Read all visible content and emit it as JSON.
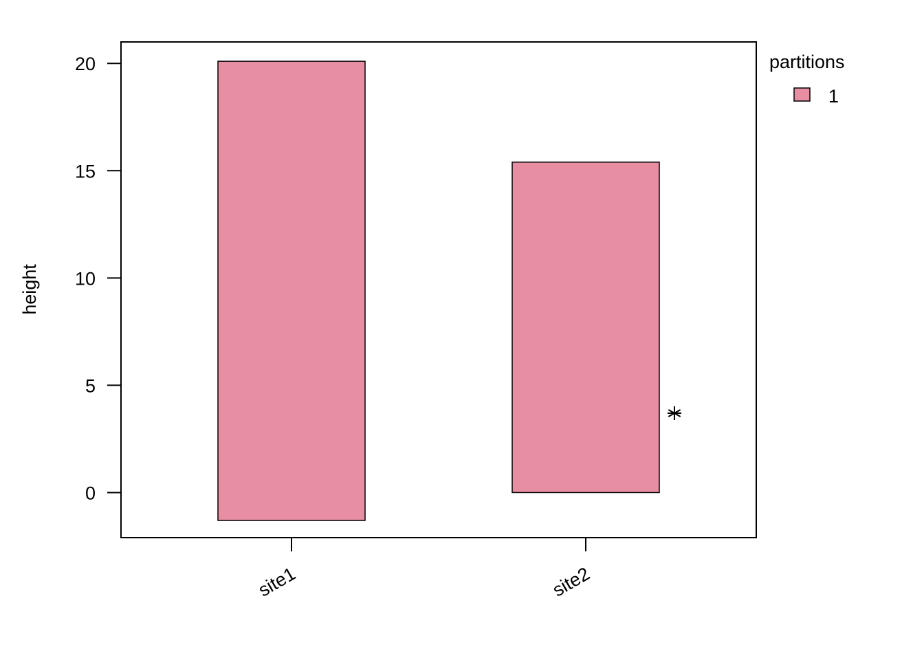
{
  "chart_data": {
    "type": "bar",
    "title": "",
    "xlabel": "",
    "ylabel": "height",
    "categories": [
      "site1",
      "site2"
    ],
    "series": [
      {
        "name": "1",
        "bars": [
          {
            "category": "site1",
            "bottom": -1.3,
            "top": 20.1
          },
          {
            "category": "site2",
            "bottom": 0,
            "top": 15.4
          }
        ]
      }
    ],
    "ylim": [
      -2.1,
      21
    ],
    "yticks": [
      "0",
      "5",
      "10",
      "15",
      "20"
    ],
    "ytick_values": [
      0,
      5,
      10,
      15,
      20
    ],
    "annotations": [
      {
        "symbol": "*",
        "category": "site2",
        "y": 3.7
      }
    ],
    "legend": {
      "title": "partitions",
      "entries": [
        "1"
      ],
      "placement": "right"
    },
    "grid": false,
    "colors": {
      "bar_fill": "#e78ea3",
      "bar_stroke": "#000000"
    }
  }
}
